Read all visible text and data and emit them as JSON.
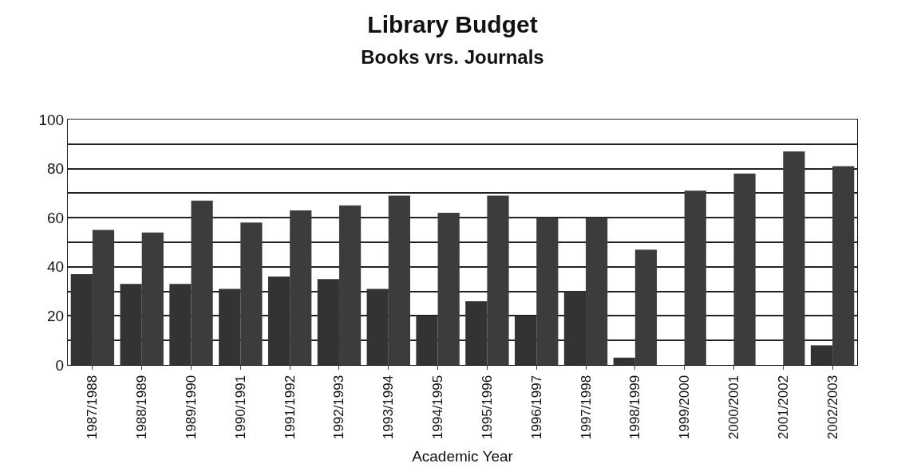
{
  "chart_data": {
    "type": "bar",
    "title": "Library Budget",
    "subtitle": "Books vrs. Journals",
    "xlabel": "Academic Year",
    "categories": [
      "1987/1988",
      "1988/1989",
      "1989/1990",
      "1990/1991",
      "1991/1992",
      "1992/1993",
      "1993/1994",
      "1994/1995",
      "1995/1996",
      "1996/1997",
      "1997/1998",
      "1998/1999",
      "1999/2000",
      "2000/2001",
      "2001/2002",
      "2002/2003"
    ],
    "series": [
      {
        "color": "#333333",
        "values": [
          37,
          33,
          33,
          31,
          36,
          35,
          31,
          20,
          26,
          20,
          30,
          3,
          0,
          0,
          0,
          8
        ]
      },
      {
        "color": "#3c3c3c",
        "values": [
          55,
          54,
          67,
          58,
          63,
          65,
          69,
          62,
          69,
          60,
          60,
          47,
          71,
          78,
          87,
          81
        ]
      }
    ],
    "ylim": [
      0,
      100
    ],
    "yticks": [
      0,
      {
        "value": 10,
        "label": null
      },
      20,
      {
        "value": 30,
        "label": null
      },
      40,
      {
        "value": 50,
        "label": null
      },
      60,
      {
        "value": 70,
        "label": null
      },
      80,
      {
        "value": 90,
        "label": null
      },
      100
    ],
    "grid": "y"
  }
}
